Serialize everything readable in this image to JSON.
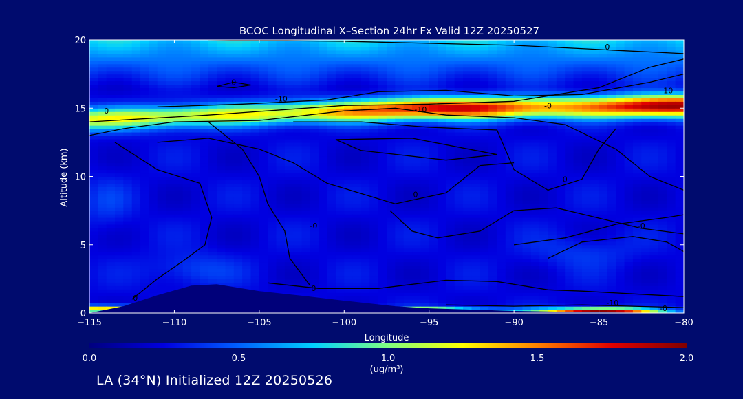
{
  "chart_data": {
    "type": "heatmap",
    "title": "BCOC Longitudinal X–Section 24hr  Fx Valid 12Z 20250527",
    "xlabel": "Longitude",
    "ylabel": "Altitude (km)",
    "xlim": [
      -115,
      -80
    ],
    "ylim": [
      0,
      20
    ],
    "x_ticks": [
      -115,
      -110,
      -105,
      -100,
      -95,
      -90,
      -85,
      -80
    ],
    "x_tick_labels": [
      "−115",
      "−110",
      "−105",
      "−100",
      "−95",
      "−90",
      "−85",
      "−80"
    ],
    "y_ticks": [
      0,
      5,
      10,
      15,
      20
    ],
    "y_tick_labels": [
      "0",
      "5",
      "10",
      "15",
      "20"
    ],
    "colorbar": {
      "min": 0.0,
      "max": 2.0,
      "ticks": [
        0.0,
        0.5,
        1.0,
        1.5,
        2.0
      ],
      "tick_labels": [
        "0.0",
        "0.5",
        "1.0",
        "1.5",
        "2.0"
      ],
      "units_label": "(ug/m³)",
      "colormap": [
        "#00007F",
        "#0000E0",
        "#0060FF",
        "#00D0FF",
        "#80FF80",
        "#FFFF00",
        "#FF8000",
        "#E00000",
        "#800000"
      ]
    },
    "background_value": 0.25,
    "bands": [
      {
        "name": "upper-aerosol-layer",
        "center_alt_at_lon": [
          [
            -115,
            14.2
          ],
          [
            -105,
            14.6
          ],
          [
            -95,
            15.0
          ],
          [
            -85,
            15.1
          ],
          [
            -80,
            15.2
          ]
        ],
        "peak_value": 1.55,
        "peak_lon": -94,
        "secondary_peak_value": 1.7,
        "secondary_peak_lon": -81,
        "thickness_km": 1.6
      },
      {
        "name": "top-gradient",
        "description": "concentration increases toward top of domain",
        "value_at_top": 0.6
      }
    ],
    "surface_peaks": [
      {
        "lon": -95,
        "alt": 0.15,
        "value": 1.6
      },
      {
        "lon": -85,
        "alt": 0.15,
        "value": 1.8
      },
      {
        "lon": -114,
        "alt": 0.3,
        "value": 1.2
      }
    ],
    "terrain": [
      [
        -115,
        0
      ],
      [
        -113,
        0.5
      ],
      [
        -111,
        1.3
      ],
      [
        -109,
        2.0
      ],
      [
        -107.5,
        2.1
      ],
      [
        -105,
        1.6
      ],
      [
        -102,
        1.2
      ],
      [
        -100,
        0.9
      ],
      [
        -97,
        0.5
      ],
      [
        -95,
        0.35
      ],
      [
        -90,
        0.15
      ],
      [
        -85,
        0.05
      ],
      [
        -80,
        0
      ]
    ],
    "contour_labels": [
      {
        "text": "0",
        "lon": -84.5,
        "alt": 19.3
      },
      {
        "text": "0",
        "lon": -106.5,
        "alt": 16.7
      },
      {
        "text": "0",
        "lon": -114,
        "alt": 14.6
      },
      {
        "text": "-10",
        "lon": -103.7,
        "alt": 15.5
      },
      {
        "text": "-10",
        "lon": -95.5,
        "alt": 14.7
      },
      {
        "text": "-0",
        "lon": -88,
        "alt": 15.0
      },
      {
        "text": "-10",
        "lon": -81,
        "alt": 16.1
      },
      {
        "text": "0",
        "lon": -95.8,
        "alt": 8.5
      },
      {
        "text": "0",
        "lon": -87,
        "alt": 9.6
      },
      {
        "text": "-0",
        "lon": -82.5,
        "alt": 6.2
      },
      {
        "text": "-0",
        "lon": -101.8,
        "alt": 6.2
      },
      {
        "text": "0",
        "lon": -112.3,
        "alt": 0.9
      },
      {
        "text": "0",
        "lon": -101.8,
        "alt": 1.6
      },
      {
        "text": "-10",
        "lon": -84.2,
        "alt": 0.55
      },
      {
        "text": "-0",
        "lon": -81.2,
        "alt": 0.15
      }
    ],
    "contours": [
      [
        [
          -115,
          14.0
        ],
        [
          -108,
          14.5
        ],
        [
          -100,
          15.2
        ],
        [
          -95,
          15.3
        ],
        [
          -90,
          15.5
        ],
        [
          -85,
          16.5
        ],
        [
          -82,
          18.0
        ],
        [
          -80,
          18.6
        ]
      ],
      [
        [
          -108,
          20.0
        ],
        [
          -100,
          19.9
        ],
        [
          -90,
          19.6
        ],
        [
          -85,
          19.3
        ],
        [
          -80,
          19.0
        ]
      ],
      [
        [
          -107.5,
          16.6
        ],
        [
          -106.5,
          16.9
        ],
        [
          -105.5,
          16.7
        ],
        [
          -106.5,
          16.5
        ],
        [
          -107.5,
          16.6
        ]
      ],
      [
        [
          -111,
          15.1
        ],
        [
          -106,
          15.3
        ],
        [
          -101,
          15.6
        ],
        [
          -98,
          16.2
        ],
        [
          -94,
          16.3
        ],
        [
          -90,
          15.9
        ],
        [
          -86,
          16.0
        ],
        [
          -82,
          16.9
        ],
        [
          -80,
          17.5
        ]
      ],
      [
        [
          -115,
          13.0
        ],
        [
          -113,
          13.5
        ],
        [
          -110,
          14.0
        ],
        [
          -105,
          14.1
        ],
        [
          -100,
          14.8
        ],
        [
          -97,
          15.0
        ],
        [
          -94,
          14.5
        ],
        [
          -90,
          14.3
        ],
        [
          -87,
          13.8
        ],
        [
          -84,
          12.0
        ],
        [
          -82,
          10.0
        ],
        [
          -80,
          9.0
        ]
      ],
      [
        [
          -100.5,
          12.7
        ],
        [
          -96,
          12.8
        ],
        [
          -91,
          11.6
        ],
        [
          -94,
          11.2
        ],
        [
          -99,
          11.9
        ],
        [
          -100.5,
          12.7
        ]
      ],
      [
        [
          -103,
          14.0
        ],
        [
          -99,
          14.0
        ],
        [
          -95,
          13.6
        ],
        [
          -91,
          13.4
        ],
        [
          -90,
          10.5
        ],
        [
          -88,
          9.0
        ],
        [
          -86,
          9.8
        ],
        [
          -85,
          12.0
        ],
        [
          -84,
          13.5
        ]
      ],
      [
        [
          -111,
          12.5
        ],
        [
          -108,
          12.8
        ],
        [
          -105,
          12.0
        ],
        [
          -103,
          11.0
        ],
        [
          -101,
          9.5
        ],
        [
          -97,
          8.0
        ],
        [
          -94,
          8.8
        ],
        [
          -92,
          10.8
        ],
        [
          -90,
          11.0
        ]
      ],
      [
        [
          -108,
          14.0
        ],
        [
          -106,
          12.0
        ],
        [
          -105,
          10.0
        ],
        [
          -104.5,
          8.0
        ],
        [
          -103.5,
          6.0
        ],
        [
          -103.2,
          4.0
        ],
        [
          -102,
          2.0
        ]
      ],
      [
        [
          -113.5,
          12.5
        ],
        [
          -111,
          10.5
        ],
        [
          -108.5,
          9.5
        ],
        [
          -107.8,
          7.0
        ],
        [
          -108.2,
          5.0
        ],
        [
          -109.5,
          3.8
        ],
        [
          -111,
          2.5
        ],
        [
          -112.5,
          1.0
        ]
      ],
      [
        [
          -97.3,
          7.5
        ],
        [
          -96.0,
          6.0
        ],
        [
          -94.5,
          5.5
        ],
        [
          -92.0,
          6.0
        ],
        [
          -90.0,
          7.5
        ],
        [
          -87.5,
          7.7
        ],
        [
          -84.5,
          6.8
        ],
        [
          -82.5,
          6.2
        ],
        [
          -80,
          5.8
        ]
      ],
      [
        [
          -90,
          5.0
        ],
        [
          -87,
          5.5
        ],
        [
          -84,
          6.5
        ],
        [
          -81,
          7.0
        ],
        [
          -80,
          7.2
        ]
      ],
      [
        [
          -88,
          4.0
        ],
        [
          -86,
          5.2
        ],
        [
          -83,
          5.6
        ],
        [
          -81,
          5.2
        ],
        [
          -80,
          4.5
        ]
      ],
      [
        [
          -104.5,
          2.2
        ],
        [
          -101.5,
          1.8
        ],
        [
          -98,
          1.8
        ],
        [
          -94,
          2.4
        ],
        [
          -91,
          2.3
        ],
        [
          -88,
          1.7
        ],
        [
          -86,
          1.6
        ],
        [
          -83,
          1.4
        ],
        [
          -80,
          1.2
        ]
      ],
      [
        [
          -94,
          0.6
        ],
        [
          -90,
          0.5
        ],
        [
          -86,
          0.6
        ],
        [
          -83,
          0.5
        ],
        [
          -80,
          0.4
        ]
      ]
    ],
    "footer_text": "LA (34°N) Initialized 12Z 20250526"
  }
}
